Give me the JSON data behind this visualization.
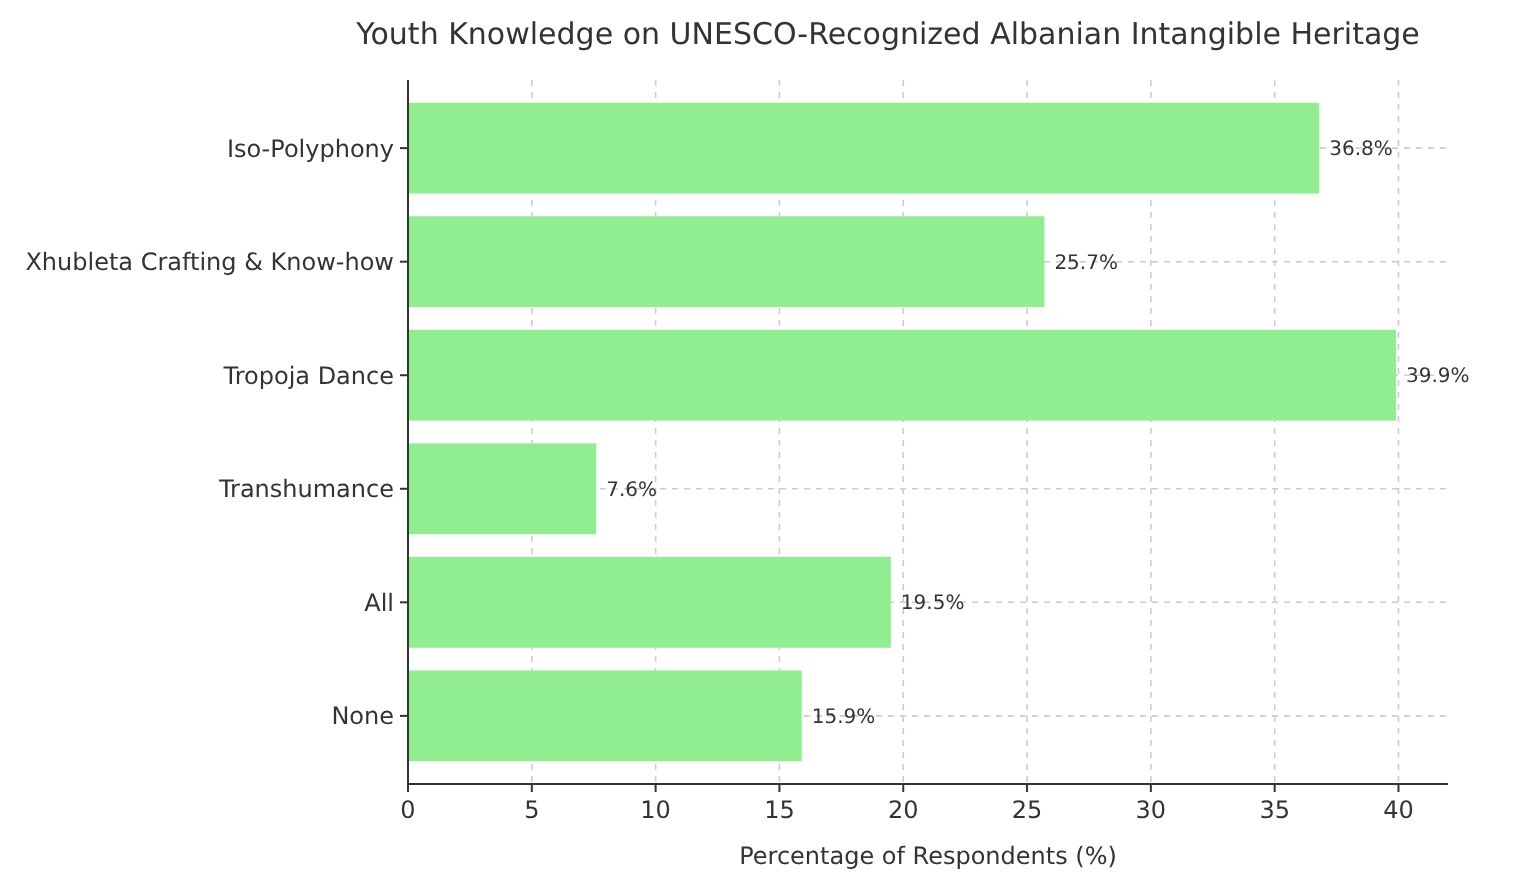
{
  "chart_data": {
    "type": "bar",
    "orientation": "horizontal",
    "title": "Youth Knowledge on UNESCO-Recognized Albanian Intangible Heritage",
    "xlabel": "Percentage of Respondents (%)",
    "categories": [
      "Iso-Polyphony",
      "Xhubleta Crafting & Know-how",
      "Tropoja Dance",
      "Transhumance",
      "All",
      "None"
    ],
    "values": [
      36.8,
      25.7,
      39.9,
      7.6,
      19.5,
      15.9
    ],
    "value_labels": [
      "36.8%",
      "25.7%",
      "39.9%",
      "7.6%",
      "19.5%",
      "15.9%"
    ],
    "color": "#90ee90",
    "xlim": [
      0,
      42
    ],
    "xticks": [
      0,
      5,
      10,
      15,
      20,
      25,
      30,
      35,
      40
    ],
    "grid": true
  }
}
